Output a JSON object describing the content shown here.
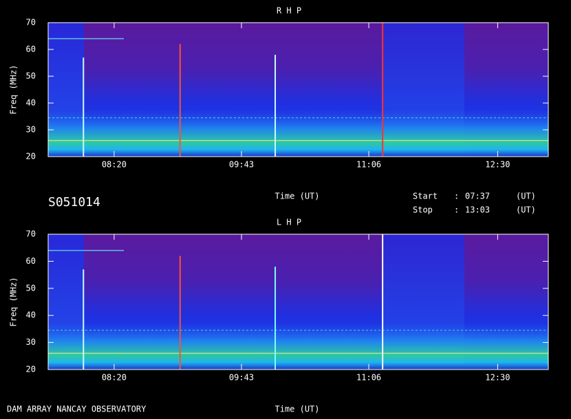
{
  "chart_data": [
    {
      "type": "spectrogram",
      "title": "R H P",
      "ylabel": "Freq (MHz)",
      "xlabel": "Time (UT)",
      "xlim": [
        457,
        783
      ],
      "xticks": [
        {
          "value": 500,
          "label": "08:20"
        },
        {
          "value": 583,
          "label": "09:43"
        },
        {
          "value": 666,
          "label": "11:06"
        },
        {
          "value": 750,
          "label": "12:30"
        }
      ],
      "ylim": [
        20,
        70
      ],
      "yticks": [
        20,
        30,
        40,
        50,
        60,
        70
      ],
      "bursts": {
        "x": [
          480,
          543,
          605,
          675
        ],
        "top": [
          57,
          62,
          58,
          70
        ],
        "colors": [
          "#c8ffff",
          "#ff5030",
          "#c8ffff",
          "#ff3030"
        ]
      }
    },
    {
      "type": "spectrogram",
      "title": "L H P",
      "ylabel": "Freq (MHz)",
      "xlabel": "Time (UT)",
      "xlim": [
        457,
        783
      ],
      "xticks": [
        {
          "value": 500,
          "label": "08:20"
        },
        {
          "value": 583,
          "label": "09:43"
        },
        {
          "value": 666,
          "label": "11:06"
        },
        {
          "value": 750,
          "label": "12:30"
        }
      ],
      "ylim": [
        20,
        70
      ],
      "yticks": [
        20,
        30,
        40,
        50,
        60,
        70
      ],
      "bursts": {
        "x": [
          480,
          543,
          605,
          675
        ],
        "top": [
          57,
          62,
          58,
          70
        ],
        "colors": [
          "#c8ffff",
          "#ff5030",
          "#80ffff",
          "#ffffff"
        ]
      }
    }
  ],
  "header": {
    "id": "S051014",
    "start_label": "Start",
    "start": "07:37",
    "stop_label": "Stop",
    "stop": "13:03",
    "separator": ":",
    "unit": "(UT)"
  },
  "footer": "DAM ARRAY  NANCAY OBSERVATORY"
}
